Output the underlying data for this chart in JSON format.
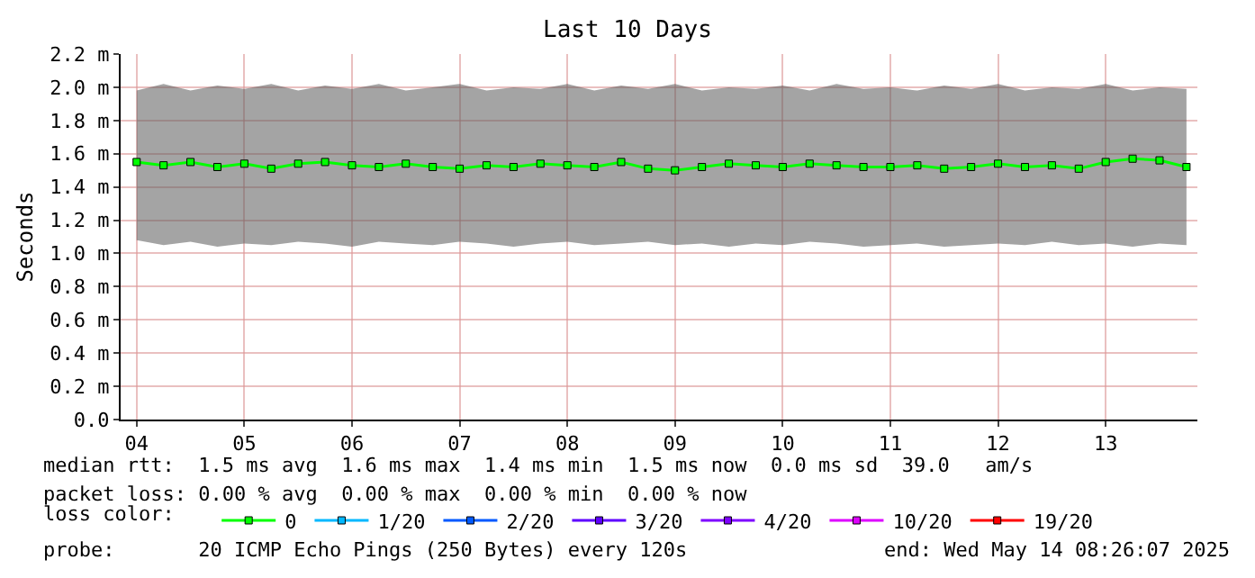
{
  "chart_data": {
    "type": "line",
    "title": "Last 10 Days",
    "ylabel": "Seconds",
    "legend_title": "loss color:",
    "legend": "bottom",
    "grid": true,
    "marker": "square",
    "line_style": "solid",
    "x": [
      "2025-05-04T12:00",
      "2025-05-04T18:00",
      "2025-05-05T00:00",
      "2025-05-05T06:00",
      "2025-05-05T12:00",
      "2025-05-05T18:00",
      "2025-05-06T00:00",
      "2025-05-06T06:00",
      "2025-05-06T12:00",
      "2025-05-06T18:00",
      "2025-05-07T00:00",
      "2025-05-07T06:00",
      "2025-05-07T12:00",
      "2025-05-07T18:00",
      "2025-05-08T00:00",
      "2025-05-08T06:00",
      "2025-05-08T12:00",
      "2025-05-08T18:00",
      "2025-05-09T00:00",
      "2025-05-09T06:00",
      "2025-05-09T12:00",
      "2025-05-09T18:00",
      "2025-05-10T00:00",
      "2025-05-10T06:00",
      "2025-05-10T12:00",
      "2025-05-10T18:00",
      "2025-05-11T00:00",
      "2025-05-11T06:00",
      "2025-05-11T12:00",
      "2025-05-11T18:00",
      "2025-05-12T00:00",
      "2025-05-12T06:00",
      "2025-05-12T12:00",
      "2025-05-12T18:00",
      "2025-05-13T00:00",
      "2025-05-13T06:00",
      "2025-05-13T12:00",
      "2025-05-13T18:00",
      "2025-05-14T00:00",
      "2025-05-14T06:00"
    ],
    "series": [
      {
        "name": "0",
        "color": "#00ff00",
        "values": [
          1.55,
          1.53,
          1.55,
          1.52,
          1.54,
          1.51,
          1.54,
          1.55,
          1.53,
          1.52,
          1.54,
          1.52,
          1.51,
          1.53,
          1.52,
          1.54,
          1.53,
          1.52,
          1.55,
          1.51,
          1.5,
          1.52,
          1.54,
          1.53,
          1.52,
          1.54,
          1.53,
          1.52,
          1.52,
          1.53,
          1.51,
          1.52,
          1.54,
          1.52,
          1.53,
          1.51,
          1.55,
          1.57,
          1.56,
          1.52
        ],
        "lower": [
          1.08,
          1.05,
          1.07,
          1.04,
          1.06,
          1.05,
          1.07,
          1.06,
          1.04,
          1.07,
          1.06,
          1.05,
          1.07,
          1.06,
          1.04,
          1.06,
          1.07,
          1.05,
          1.06,
          1.07,
          1.05,
          1.06,
          1.04,
          1.06,
          1.05,
          1.07,
          1.06,
          1.04,
          1.05,
          1.06,
          1.04,
          1.05,
          1.06,
          1.05,
          1.07,
          1.05,
          1.06,
          1.04,
          1.06,
          1.05
        ],
        "upper": [
          1.98,
          2.02,
          1.98,
          2.01,
          1.99,
          2.02,
          1.98,
          2.01,
          1.99,
          2.02,
          1.98,
          2.0,
          2.02,
          1.98,
          2.0,
          1.99,
          2.02,
          1.98,
          2.01,
          1.99,
          2.02,
          1.98,
          2.0,
          1.99,
          2.01,
          1.98,
          2.02,
          1.99,
          2.0,
          1.98,
          2.01,
          1.99,
          2.02,
          1.98,
          2.0,
          1.99,
          2.02,
          1.98,
          2.0,
          1.99
        ]
      },
      {
        "name": "1/20",
        "color": "#00b8ff",
        "values": [
          null,
          null,
          null,
          null,
          null,
          null,
          null,
          null,
          null,
          null,
          null,
          null,
          null,
          null,
          null,
          null,
          null,
          null,
          null,
          null,
          null,
          null,
          null,
          null,
          null,
          null,
          null,
          null,
          null,
          null,
          null,
          null,
          null,
          null,
          null,
          null,
          null,
          null,
          null,
          null
        ]
      },
      {
        "name": "2/20",
        "color": "#0059ff",
        "values": [
          null,
          null,
          null,
          null,
          null,
          null,
          null,
          null,
          null,
          null,
          null,
          null,
          null,
          null,
          null,
          null,
          null,
          null,
          null,
          null,
          null,
          null,
          null,
          null,
          null,
          null,
          null,
          null,
          null,
          null,
          null,
          null,
          null,
          null,
          null,
          null,
          null,
          null,
          null,
          null
        ]
      },
      {
        "name": "3/20",
        "color": "#5e00ff",
        "values": [
          null,
          null,
          null,
          null,
          null,
          null,
          null,
          null,
          null,
          null,
          null,
          null,
          null,
          null,
          null,
          null,
          null,
          null,
          null,
          null,
          null,
          null,
          null,
          null,
          null,
          null,
          null,
          null,
          null,
          null,
          null,
          null,
          null,
          null,
          null,
          null,
          null,
          null,
          null,
          null
        ]
      },
      {
        "name": "4/20",
        "color": "#7e00ff",
        "values": [
          null,
          null,
          null,
          null,
          null,
          null,
          null,
          null,
          null,
          null,
          null,
          null,
          null,
          null,
          null,
          null,
          null,
          null,
          null,
          null,
          null,
          null,
          null,
          null,
          null,
          null,
          null,
          null,
          null,
          null,
          null,
          null,
          null,
          null,
          null,
          null,
          null,
          null,
          null,
          null
        ]
      },
      {
        "name": "10/20",
        "color": "#dd00ff",
        "values": [
          null,
          null,
          null,
          null,
          null,
          null,
          null,
          null,
          null,
          null,
          null,
          null,
          null,
          null,
          null,
          null,
          null,
          null,
          null,
          null,
          null,
          null,
          null,
          null,
          null,
          null,
          null,
          null,
          null,
          null,
          null,
          null,
          null,
          null,
          null,
          null,
          null,
          null,
          null,
          null
        ]
      },
      {
        "name": "19/20",
        "color": "#ff0000",
        "values": [
          null,
          null,
          null,
          null,
          null,
          null,
          null,
          null,
          null,
          null,
          null,
          null,
          null,
          null,
          null,
          null,
          null,
          null,
          null,
          null,
          null,
          null,
          null,
          null,
          null,
          null,
          null,
          null,
          null,
          null,
          null,
          null,
          null,
          null,
          null,
          null,
          null,
          null,
          null,
          null
        ]
      }
    ],
    "xlim": [
      "2025-05-04T08:26",
      "2025-05-14T08:26"
    ],
    "xticks": [
      {
        "value": "2025-05-04T12:00",
        "label": "04"
      },
      {
        "value": "2025-05-05T12:00",
        "label": "05"
      },
      {
        "value": "2025-05-06T12:00",
        "label": "06"
      },
      {
        "value": "2025-05-07T12:00",
        "label": "07"
      },
      {
        "value": "2025-05-08T12:00",
        "label": "08"
      },
      {
        "value": "2025-05-09T12:00",
        "label": "09"
      },
      {
        "value": "2025-05-10T12:00",
        "label": "10"
      },
      {
        "value": "2025-05-11T12:00",
        "label": "11"
      },
      {
        "value": "2025-05-12T12:00",
        "label": "12"
      },
      {
        "value": "2025-05-13T12:00",
        "label": "13"
      }
    ],
    "ylim": [
      0,
      2.2
    ],
    "yticks": [
      {
        "value": 0,
        "label": "0.0"
      },
      {
        "value": 0.2,
        "label": "0.2 m"
      },
      {
        "value": 0.4,
        "label": "0.4 m"
      },
      {
        "value": 0.6,
        "label": "0.6 m"
      },
      {
        "value": 0.8,
        "label": "0.8 m"
      },
      {
        "value": 1.0,
        "label": "1.0 m"
      },
      {
        "value": 1.2,
        "label": "1.2 m"
      },
      {
        "value": 1.4,
        "label": "1.4 m"
      },
      {
        "value": 1.6,
        "label": "1.6 m"
      },
      {
        "value": 1.8,
        "label": "1.8 m"
      },
      {
        "value": 2.0,
        "label": "2.0 m"
      },
      {
        "value": 2.2,
        "label": "2.2 m"
      }
    ],
    "annotations": [
      "median rtt:  1.5 ms avg  1.6 ms max  1.4 ms min  1.5 ms now  0.0 ms sd  39.0   am/s",
      "packet loss: 0.00 % avg  0.00 % max  0.00 % min  0.00 % now",
      "probe:       20 ICMP Echo Pings (250 Bytes) every 120s",
      "end: Wed May 14 08:26:07 2025"
    ]
  }
}
